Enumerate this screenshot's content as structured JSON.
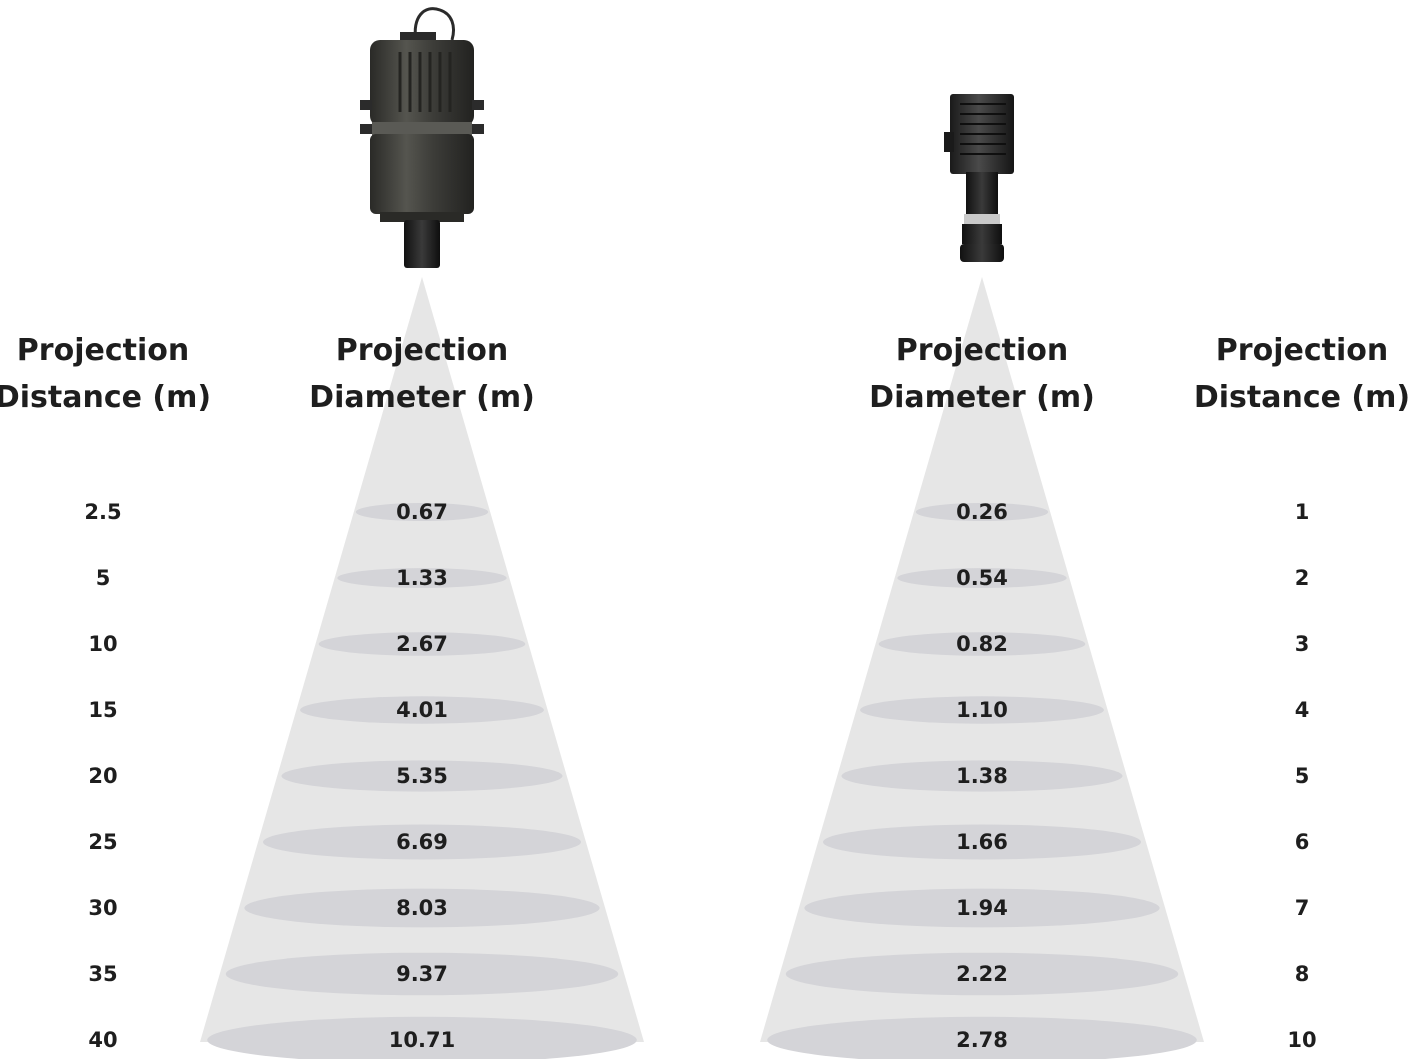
{
  "left_projector": {
    "label_distance": [
      "Projection",
      "Distance (m)"
    ],
    "label_diameter": [
      "Projection",
      "Diameter (m)"
    ],
    "rows": [
      {
        "distance": "2.5",
        "diameter": "0.67"
      },
      {
        "distance": "5",
        "diameter": "1.33"
      },
      {
        "distance": "10",
        "diameter": "2.67"
      },
      {
        "distance": "15",
        "diameter": "4.01"
      },
      {
        "distance": "20",
        "diameter": "5.35"
      },
      {
        "distance": "25",
        "diameter": "6.69"
      },
      {
        "distance": "30",
        "diameter": "8.03"
      },
      {
        "distance": "35",
        "diameter": "9.37"
      },
      {
        "distance": "40",
        "diameter": "10.71"
      }
    ]
  },
  "right_projector": {
    "label_diameter": [
      "Projection",
      "Diameter (m)"
    ],
    "label_distance": [
      "Projection",
      "Distance (m)"
    ],
    "rows": [
      {
        "distance": "1",
        "diameter": "0.26"
      },
      {
        "distance": "2",
        "diameter": "0.54"
      },
      {
        "distance": "3",
        "diameter": "0.82"
      },
      {
        "distance": "4",
        "diameter": "1.10"
      },
      {
        "distance": "5",
        "diameter": "1.38"
      },
      {
        "distance": "6",
        "diameter": "1.66"
      },
      {
        "distance": "7",
        "diameter": "1.94"
      },
      {
        "distance": "8",
        "diameter": "2.22"
      },
      {
        "distance": "10",
        "diameter": "2.78"
      }
    ]
  },
  "colors": {
    "beam": "#e6e6e6",
    "ellipse": "#d4d4d8",
    "text": "#1e1e1e",
    "projector_body": "#3a3a36"
  }
}
